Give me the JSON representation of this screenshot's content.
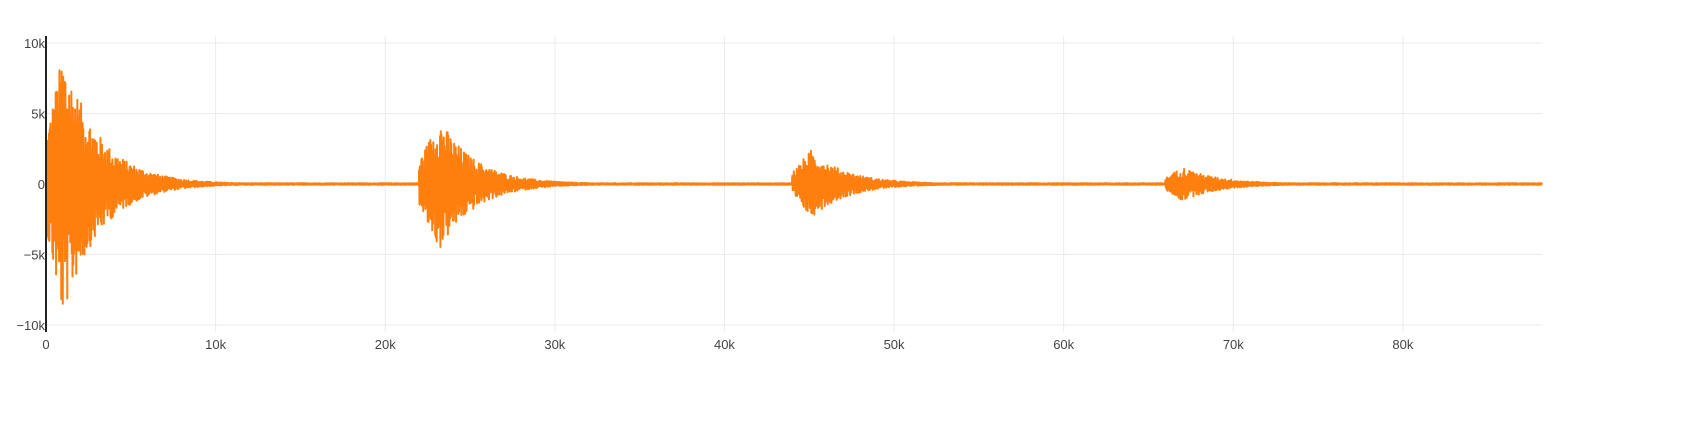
{
  "chart_data": {
    "type": "line",
    "title": "",
    "xlabel": "",
    "ylabel": "",
    "xlim": [
      0,
      88200
    ],
    "ylim": [
      -10500,
      10500
    ],
    "x_ticks": [
      0,
      10000,
      20000,
      30000,
      40000,
      50000,
      60000,
      70000,
      80000
    ],
    "x_tick_labels": [
      "0",
      "10k",
      "20k",
      "30k",
      "40k",
      "50k",
      "60k",
      "70k",
      "80k"
    ],
    "y_ticks": [
      10000,
      5000,
      0,
      -5000,
      -10000
    ],
    "y_tick_labels": [
      "10k",
      "5k",
      "0",
      "−5k",
      "−10k"
    ],
    "grid": true,
    "series": [
      {
        "color": "#ff7f0e",
        "envelope": {
          "bursts": [
            {
              "start": 0,
              "peak": 1000,
              "decay_end": 12000,
              "amplitude": 9500
            },
            {
              "start": 22000,
              "peak": 23200,
              "decay_end": 34000,
              "amplitude": 4700
            },
            {
              "start": 44000,
              "peak": 45100,
              "decay_end": 56000,
              "amplitude": 2400
            },
            {
              "start": 66000,
              "peak": 67000,
              "decay_end": 78000,
              "amplitude": 1200
            }
          ],
          "baseline": 60
        }
      }
    ]
  }
}
